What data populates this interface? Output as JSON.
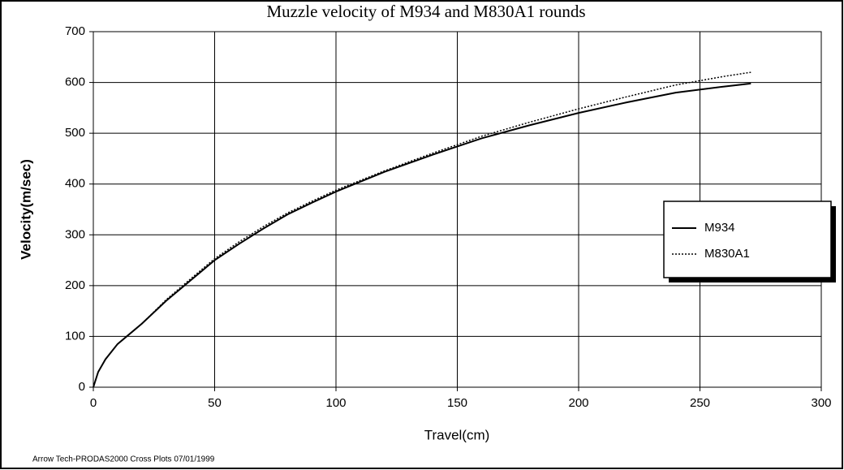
{
  "chart_data": {
    "type": "line",
    "title": "Muzzle velocity of M934 and M830A1 rounds",
    "x_label": "Travel(cm)",
    "y_label": "Velocity(m/sec)",
    "footnote": "Arrow Tech-PRODAS2000 Cross Plots 07/01/1999",
    "x": [
      0,
      2,
      5,
      10,
      15,
      20,
      30,
      40,
      50,
      60,
      70,
      80,
      90,
      100,
      120,
      140,
      160,
      180,
      200,
      220,
      240,
      260,
      271
    ],
    "series": [
      {
        "name": "M934",
        "color": "#000000",
        "dash": "solid",
        "values": [
          0,
          30,
          55,
          85,
          105,
          125,
          170,
          210,
          250,
          282,
          312,
          340,
          363,
          385,
          424,
          458,
          490,
          516,
          540,
          561,
          580,
          592,
          598
        ]
      },
      {
        "name": "M830A1",
        "color": "#000000",
        "dash": "dotted",
        "values": [
          0,
          30,
          55,
          85,
          105,
          125,
          172,
          213,
          253,
          286,
          316,
          343,
          366,
          388,
          426,
          461,
          494,
          522,
          548,
          572,
          595,
          612,
          620
        ]
      }
    ],
    "xlim": [
      0,
      300
    ],
    "xticks": [
      0,
      50,
      100,
      150,
      200,
      250,
      300
    ],
    "ylim": [
      0,
      700
    ],
    "yticks": [
      0,
      100,
      200,
      300,
      400,
      500,
      600,
      700
    ],
    "grid": true,
    "legend": "right"
  }
}
